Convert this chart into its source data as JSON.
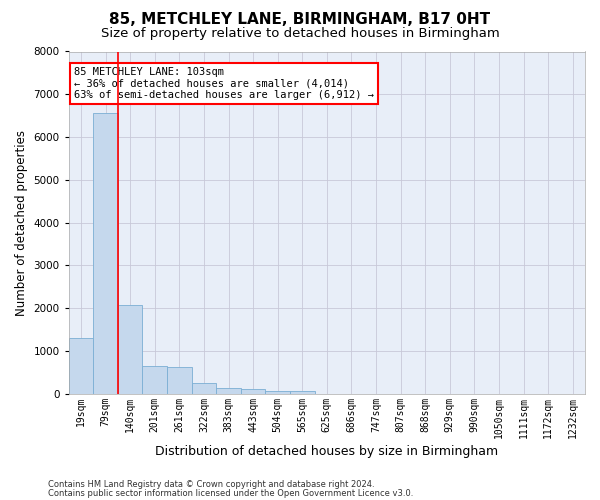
{
  "title": "85, METCHLEY LANE, BIRMINGHAM, B17 0HT",
  "subtitle": "Size of property relative to detached houses in Birmingham",
  "xlabel": "Distribution of detached houses by size in Birmingham",
  "ylabel": "Number of detached properties",
  "categories": [
    "19sqm",
    "79sqm",
    "140sqm",
    "201sqm",
    "261sqm",
    "322sqm",
    "383sqm",
    "443sqm",
    "504sqm",
    "565sqm",
    "625sqm",
    "686sqm",
    "747sqm",
    "807sqm",
    "868sqm",
    "929sqm",
    "990sqm",
    "1050sqm",
    "1111sqm",
    "1172sqm",
    "1232sqm"
  ],
  "values": [
    1300,
    6570,
    2080,
    650,
    620,
    250,
    130,
    100,
    60,
    60,
    0,
    0,
    0,
    0,
    0,
    0,
    0,
    0,
    0,
    0,
    0
  ],
  "bar_color": "#c5d8ed",
  "bar_edge_color": "#7baed4",
  "background_color": "#e8eef8",
  "grid_color": "#c8c8d8",
  "annotation_text": "85 METCHLEY LANE: 103sqm\n← 36% of detached houses are smaller (4,014)\n63% of semi-detached houses are larger (6,912) →",
  "redline_x": 1.5,
  "ylim": [
    0,
    8000
  ],
  "yticks": [
    0,
    1000,
    2000,
    3000,
    4000,
    5000,
    6000,
    7000,
    8000
  ],
  "footnote1": "Contains HM Land Registry data © Crown copyright and database right 2024.",
  "footnote2": "Contains public sector information licensed under the Open Government Licence v3.0.",
  "title_fontsize": 11,
  "subtitle_fontsize": 9.5,
  "xlabel_fontsize": 9,
  "ylabel_fontsize": 8.5,
  "tick_fontsize": 7,
  "annotation_fontsize": 7.5,
  "footnote_fontsize": 6
}
